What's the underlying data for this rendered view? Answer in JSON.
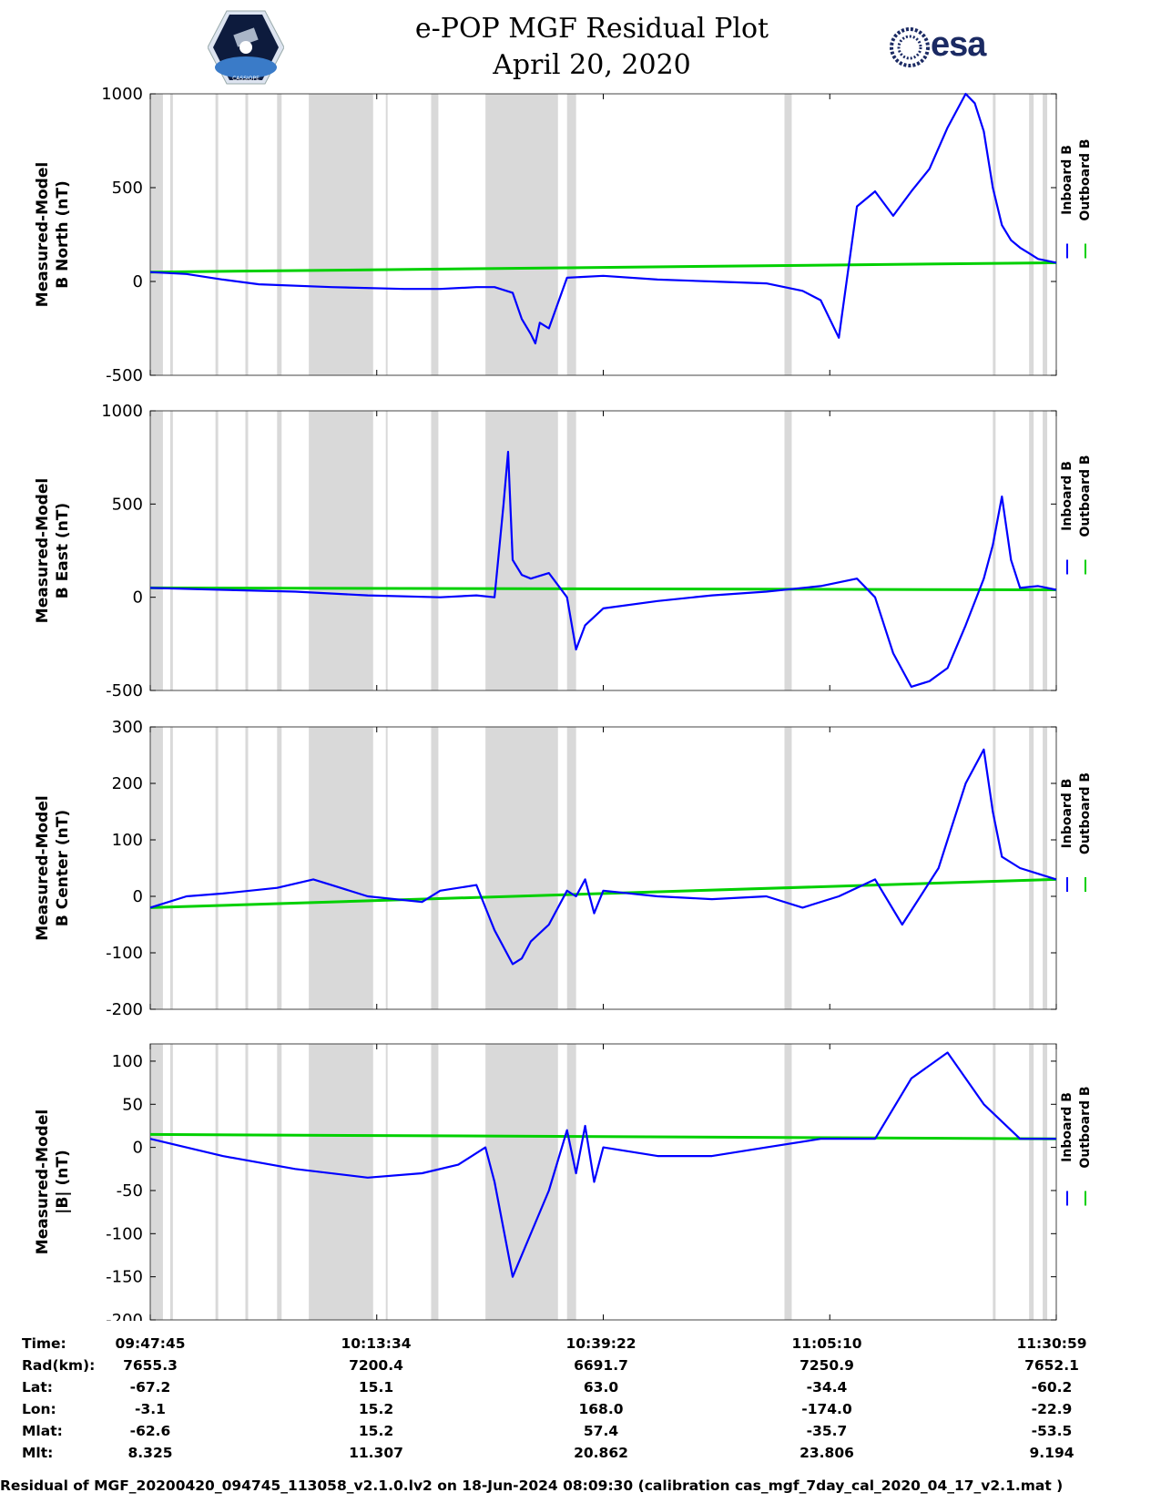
{
  "header": {
    "title_line1": "e-POP MGF Residual Plot",
    "title_line2": "April 20, 2020",
    "logo_left_text": "CASSIOPE",
    "logo_right_text": "esa"
  },
  "legend": {
    "inboard": "Inboard B",
    "outboard": "Outboard B",
    "inboard_color": "#0000ff",
    "outboard_color": "#00d000"
  },
  "chart_data": [
    {
      "type": "line",
      "ylabel": [
        "Measured-Model",
        "B North (nT)"
      ],
      "ylim": [
        -500,
        1000
      ],
      "yticks": [
        -500,
        0,
        500,
        1000
      ],
      "series": [
        {
          "name": "Inboard B",
          "x": [
            0,
            4,
            8,
            12,
            20,
            28,
            32,
            36,
            38,
            40,
            41,
            42,
            42.5,
            43,
            44,
            46,
            50,
            56,
            62,
            68,
            70,
            72,
            74,
            76,
            78,
            80,
            82,
            84,
            86,
            88,
            90,
            91,
            92,
            93,
            94,
            95,
            96,
            97,
            98,
            100
          ],
          "values": [
            50,
            40,
            10,
            -15,
            -30,
            -40,
            -40,
            -30,
            -30,
            -60,
            -200,
            -280,
            -330,
            -220,
            -250,
            20,
            30,
            10,
            0,
            -10,
            -30,
            -50,
            -100,
            -300,
            400,
            480,
            350,
            480,
            600,
            820,
            1000,
            950,
            800,
            500,
            300,
            220,
            180,
            150,
            120,
            100
          ]
        },
        {
          "name": "Outboard B",
          "x": [
            0,
            100
          ],
          "values": [
            50,
            100
          ]
        }
      ]
    },
    {
      "type": "line",
      "ylabel": [
        "Measured-Model",
        "B East (nT)"
      ],
      "ylim": [
        -500,
        1000
      ],
      "yticks": [
        -500,
        0,
        500,
        1000
      ],
      "series": [
        {
          "name": "Inboard B",
          "x": [
            0,
            8,
            16,
            24,
            32,
            36,
            38,
            39,
            39.5,
            40,
            41,
            42,
            44,
            46,
            47,
            48,
            50,
            56,
            62,
            68,
            74,
            78,
            80,
            82,
            84,
            86,
            88,
            90,
            92,
            93,
            94,
            95,
            96,
            98,
            100
          ],
          "values": [
            50,
            40,
            30,
            10,
            0,
            10,
            0,
            500,
            780,
            200,
            120,
            100,
            130,
            0,
            -280,
            -150,
            -60,
            -20,
            10,
            30,
            60,
            100,
            0,
            -300,
            -480,
            -450,
            -380,
            -150,
            100,
            280,
            540,
            200,
            50,
            60,
            40
          ]
        },
        {
          "name": "Outboard B",
          "x": [
            0,
            100
          ],
          "values": [
            50,
            40
          ]
        }
      ]
    },
    {
      "type": "line",
      "ylabel": [
        "Measured-Model",
        "B Center (nT)"
      ],
      "ylim": [
        -200,
        300
      ],
      "yticks": [
        -200,
        -100,
        0,
        100,
        200,
        300
      ],
      "series": [
        {
          "name": "Inboard B",
          "x": [
            0,
            4,
            8,
            14,
            18,
            20,
            24,
            30,
            32,
            36,
            38,
            40,
            41,
            42,
            44,
            46,
            47,
            48,
            49,
            50,
            56,
            62,
            68,
            72,
            76,
            80,
            83,
            85,
            87,
            88,
            90,
            92,
            93,
            94,
            96,
            100
          ],
          "values": [
            -20,
            0,
            5,
            15,
            30,
            20,
            0,
            -10,
            10,
            20,
            -60,
            -120,
            -110,
            -80,
            -50,
            10,
            0,
            30,
            -30,
            10,
            0,
            -5,
            0,
            -20,
            0,
            30,
            -50,
            0,
            50,
            100,
            200,
            260,
            150,
            70,
            50,
            30
          ]
        },
        {
          "name": "Outboard B",
          "x": [
            0,
            100
          ],
          "values": [
            -20,
            30
          ]
        }
      ]
    },
    {
      "type": "line",
      "ylabel": [
        "Measured-Model",
        "|B| (nT)"
      ],
      "ylim": [
        -200,
        120
      ],
      "yticks": [
        -200,
        -150,
        -100,
        -50,
        0,
        50,
        100
      ],
      "series": [
        {
          "name": "Inboard B",
          "x": [
            0,
            8,
            16,
            24,
            30,
            34,
            37,
            38,
            40,
            44,
            46,
            47,
            48,
            49,
            50,
            56,
            62,
            68,
            74,
            80,
            84,
            88,
            92,
            96,
            100
          ],
          "values": [
            10,
            -10,
            -25,
            -35,
            -30,
            -20,
            0,
            -40,
            -150,
            -50,
            20,
            -30,
            25,
            -40,
            0,
            -10,
            -10,
            0,
            10,
            10,
            80,
            110,
            50,
            10,
            10
          ]
        },
        {
          "name": "Outboard B",
          "x": [
            0,
            100
          ],
          "values": [
            15,
            10
          ]
        }
      ]
    }
  ],
  "ephemeris": {
    "labels": [
      "Time:",
      "Rad(km):",
      "Lat:",
      "Lon:",
      "Mlat:",
      "Mlt:"
    ],
    "columns": [
      [
        "09:47:45",
        "7655.3",
        "-67.2",
        "-3.1",
        "-62.6",
        "8.325"
      ],
      [
        "10:13:34",
        "7200.4",
        "15.1",
        "15.2",
        "15.2",
        "11.307"
      ],
      [
        "10:39:22",
        "6691.7",
        "63.0",
        "168.0",
        "57.4",
        "20.862"
      ],
      [
        "11:05:10",
        "7250.9",
        "-34.4",
        "-174.0",
        "-35.7",
        "23.806"
      ],
      [
        "11:30:59",
        "7652.1",
        "-60.2",
        "-22.9",
        "-53.5",
        "9.194"
      ]
    ]
  },
  "footer": "Residual of MGF_20200420_094745_113058_v2.1.0.lv2 on 18-Jun-2024 08:09:30 (calibration cas_mgf_7day_cal_2020_04_17_v2.1.mat )"
}
